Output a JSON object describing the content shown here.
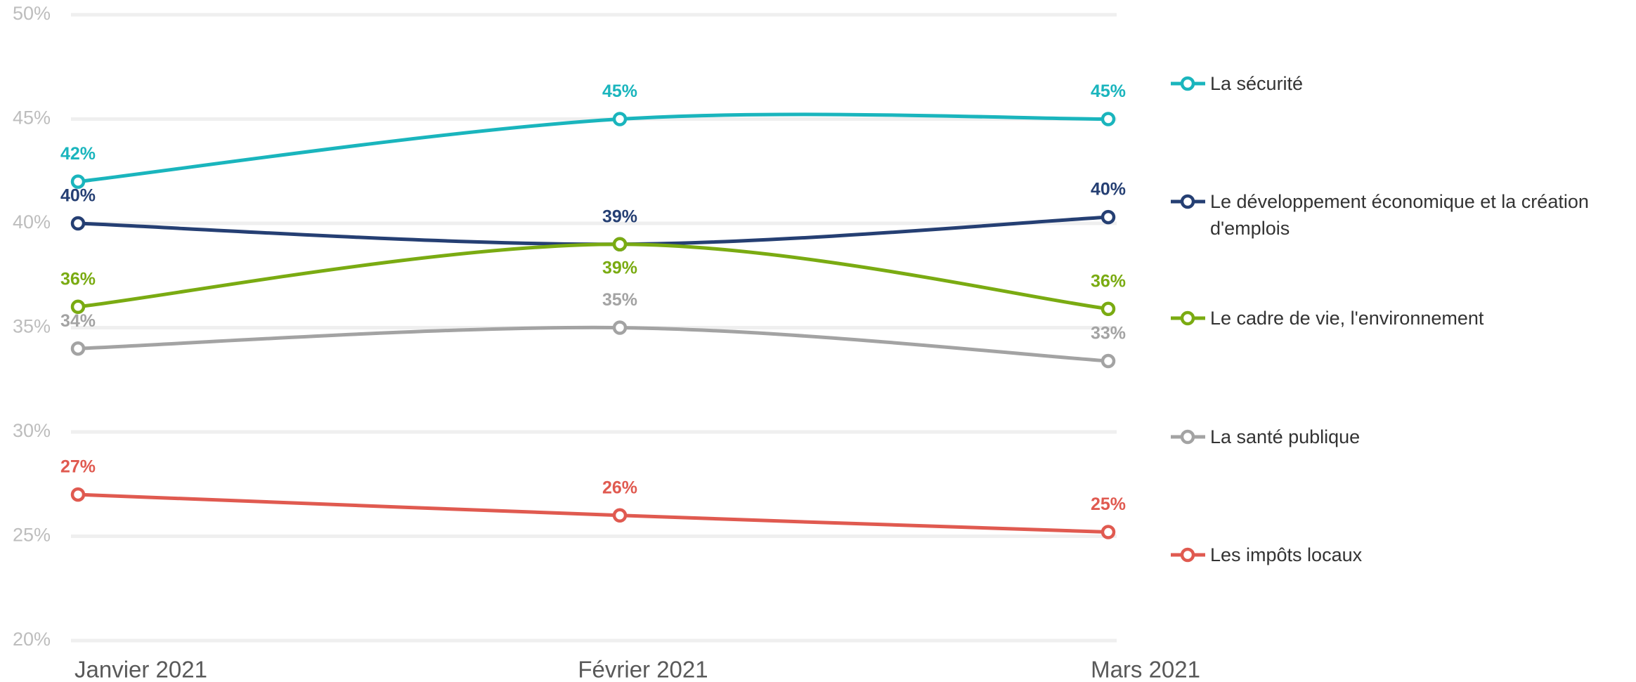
{
  "chart_data": {
    "type": "line",
    "categories": [
      "Janvier 2021",
      "Février 2021",
      "Mars 2021"
    ],
    "ylim": [
      20,
      50
    ],
    "yticks": [
      {
        "value": 20,
        "label": "20%"
      },
      {
        "value": 25,
        "label": "25%"
      },
      {
        "value": 30,
        "label": "30%"
      },
      {
        "value": 35,
        "label": "35%"
      },
      {
        "value": 40,
        "label": "40%"
      },
      {
        "value": 45,
        "label": "45%"
      },
      {
        "value": 50,
        "label": "50%"
      }
    ],
    "grid": true,
    "legend": "right",
    "smooth": true,
    "series": [
      {
        "name": "La sécurité",
        "color": "#1ab5bd",
        "values": [
          42,
          45,
          45
        ],
        "value_labels": [
          "42%",
          "45%",
          "45%"
        ]
      },
      {
        "name": "Le développement économique et la création d'emplois",
        "color": "#253f73",
        "values": [
          40,
          39,
          40.3
        ],
        "value_labels": [
          "40%",
          "39%",
          "40%"
        ]
      },
      {
        "name": "Le cadre de vie, l'environnement",
        "color": "#7aab12",
        "values": [
          36,
          39,
          35.9
        ],
        "value_labels": [
          "36%",
          "39%",
          "36%"
        ]
      },
      {
        "name": "La santé publique",
        "color": "#a3a3a3",
        "values": [
          34,
          35,
          33.4
        ],
        "value_labels": [
          "34%",
          "35%",
          "33%"
        ]
      },
      {
        "name": "Les impôts locaux",
        "color": "#e05a50",
        "values": [
          27,
          26,
          25.2
        ],
        "value_labels": [
          "27%",
          "26%",
          "25%"
        ]
      }
    ]
  }
}
